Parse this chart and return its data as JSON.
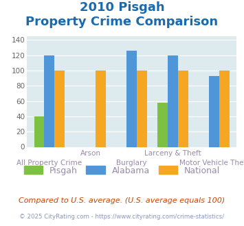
{
  "title_line1": "2010 Pisgah",
  "title_line2": "Property Crime Comparison",
  "categories": [
    "All Property Crime",
    "Arson",
    "Burglary",
    "Larceny & Theft",
    "Motor Vehicle Theft"
  ],
  "pisgah": [
    40,
    0,
    0,
    58,
    0
  ],
  "alabama": [
    120,
    0,
    126,
    120,
    93
  ],
  "national": [
    100,
    100,
    100,
    100,
    100
  ],
  "pisgah_color": "#7dc142",
  "alabama_color": "#4f96d8",
  "national_color": "#f5a623",
  "ylim": [
    0,
    145
  ],
  "yticks": [
    0,
    20,
    40,
    60,
    80,
    100,
    120,
    140
  ],
  "xlabel_top": [
    "",
    "Arson",
    "",
    "Larceny & Theft",
    ""
  ],
  "xlabel_bottom": [
    "All Property Crime",
    "",
    "Burglary",
    "",
    "Motor Vehicle Theft"
  ],
  "legend_labels": [
    "Pisgah",
    "Alabama",
    "National"
  ],
  "footnote1": "Compared to U.S. average. (U.S. average equals 100)",
  "footnote2": "© 2025 CityRating.com - https://www.cityrating.com/crime-statistics/",
  "bg_color": "#ddeaee",
  "title_color": "#1a6aad",
  "xlabel_color": "#9a8aaa",
  "footnote1_color": "#cc4400",
  "footnote2_color": "#8899bb",
  "bar_width": 0.25
}
